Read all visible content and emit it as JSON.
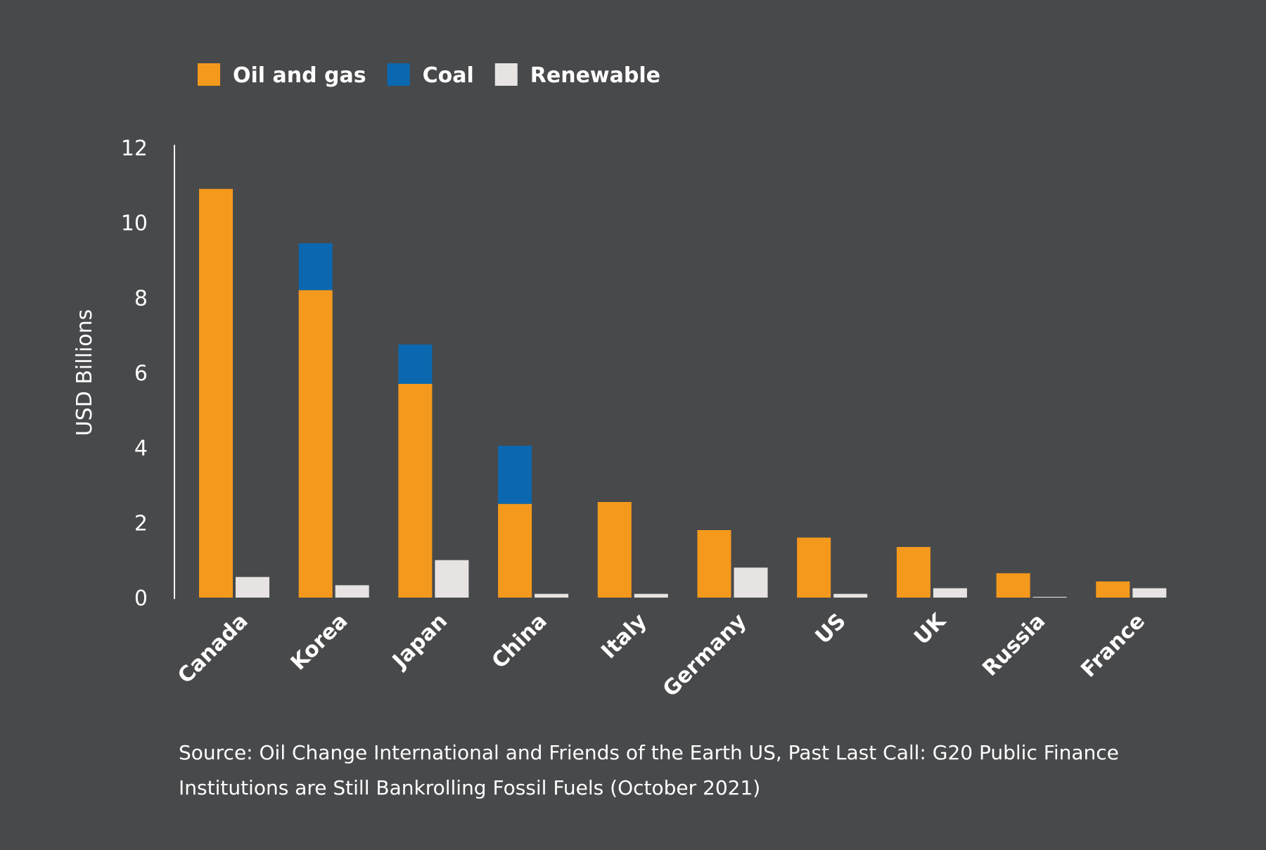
{
  "chart_data": {
    "type": "bar",
    "ylabel": "USD Billions",
    "ylim": [
      0,
      12
    ],
    "yticks": [
      0,
      2,
      4,
      6,
      8,
      10,
      12
    ],
    "legend_position": "top-left",
    "grid": false,
    "categories": [
      "Canada",
      "Korea",
      "Japan",
      "China",
      "Italy",
      "Germany",
      "US",
      "UK",
      "Russia",
      "France"
    ],
    "series": [
      {
        "name": "Oil and gas",
        "color": "#f5991c",
        "values": [
          10.9,
          8.2,
          5.7,
          2.5,
          2.55,
          1.8,
          1.6,
          1.35,
          0.65,
          0.43
        ],
        "stack": "fossil"
      },
      {
        "name": "Coal",
        "color": "#0b68b0",
        "values": [
          0,
          1.25,
          1.05,
          1.55,
          0,
          0,
          0,
          0,
          0,
          0
        ],
        "stack": "fossil"
      },
      {
        "name": "Renewable",
        "color": "#e6e3e2",
        "values": [
          0.55,
          0.33,
          1.0,
          0.1,
          0.1,
          0.8,
          0.1,
          0.25,
          0.02,
          0.25
        ],
        "stack": "renewable"
      }
    ]
  },
  "source": {
    "line1": "Source: Oil Change International and Friends of the Earth US, Past Last Call: G20 Public Finance",
    "line2": "Institutions are Still Bankrolling Fossil Fuels (October 2021)"
  }
}
